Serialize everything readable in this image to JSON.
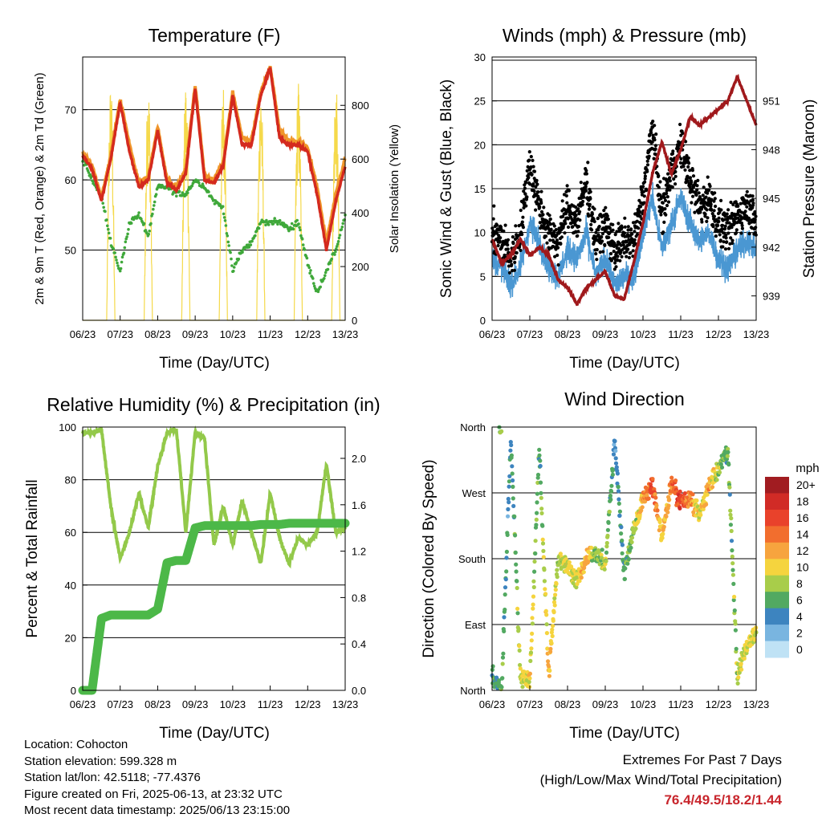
{
  "info": {
    "location": "Location: Cohocton",
    "elevation": "Station elevation: 599.328 m",
    "latlon": "Station lat/lon: 42.5118; -77.4376",
    "created": "Figure created on Fri, 2025-06-13, at 23:32 UTC",
    "recent": "Most recent data timestamp: 2025/06/13 23:15:00"
  },
  "extremes": {
    "title": "Extremes For Past 7 Days",
    "subtitle": "(High/Low/Max Wind/Total Precipitation)",
    "values": "76.4/49.5/18.2/1.44"
  },
  "time_ticks": [
    "06/23",
    "07/23",
    "08/23",
    "09/23",
    "10/23",
    "11/23",
    "12/23",
    "13/23"
  ],
  "colors": {
    "red": "#d42a1e",
    "orange": "#f0962a",
    "green": "#3fa83a",
    "yellow": "#f5d94a",
    "blue": "#4a97d2",
    "black": "#000000",
    "maroon": "#a0191c",
    "rh": "#93c94a",
    "precip": "#4cb848"
  },
  "chart_data": [
    {
      "type": "line",
      "title": "Temperature (F)",
      "xlabel": "Time (Day/UTC)",
      "ylabel": "2m & 9m T (Red, Orange) & 2m Td (Green)",
      "y2label": "Solar Insolation (Yellow)",
      "ylim": [
        40,
        77.5
      ],
      "y2lim": [
        0,
        980
      ],
      "yticks": [
        "50",
        "60",
        "70"
      ],
      "y2ticks": [
        "0",
        "200",
        "400",
        "600",
        "800"
      ],
      "x": [
        6.0,
        6.25,
        6.5,
        6.75,
        7.0,
        7.25,
        7.5,
        7.75,
        8.0,
        8.25,
        8.5,
        8.75,
        9.0,
        9.25,
        9.5,
        9.75,
        10.0,
        10.25,
        10.5,
        10.75,
        11.0,
        11.25,
        11.5,
        11.75,
        12.0,
        12.25,
        12.5,
        12.75,
        13.0
      ],
      "series": [
        {
          "name": "2m T",
          "values": [
            63.5,
            61.5,
            57,
            63,
            71,
            64,
            59,
            60,
            67,
            59.5,
            58.5,
            61,
            73,
            60,
            59.5,
            62,
            72,
            65,
            65,
            72,
            76,
            66,
            65,
            65,
            64,
            58,
            50,
            57,
            62
          ]
        },
        {
          "name": "9m T",
          "values": [
            63.8,
            62,
            57.5,
            63.5,
            71.5,
            65,
            59.5,
            60.5,
            67.5,
            60,
            59,
            61.5,
            73.5,
            60.5,
            60,
            62.5,
            72.5,
            66,
            65.5,
            72.5,
            76.2,
            67,
            65.5,
            65.5,
            64.5,
            59,
            51,
            58,
            63
          ]
        },
        {
          "name": "2m Td",
          "values": [
            63,
            60,
            58,
            51,
            47,
            54,
            55,
            52,
            59,
            59,
            58,
            58,
            60,
            59,
            57,
            56,
            47,
            50,
            51,
            54,
            54,
            54,
            53,
            54,
            48,
            44,
            47,
            50,
            55
          ]
        },
        {
          "name": "Solar Insolation",
          "axis": "y2",
          "values": [
            120,
            200,
            0,
            900,
            1000,
            0,
            0,
            0,
            950,
            0,
            0,
            0,
            850,
            0,
            0,
            0,
            960,
            0,
            0,
            0,
            950,
            0,
            0,
            0,
            980,
            0,
            0,
            0,
            800
          ]
        }
      ]
    },
    {
      "type": "line",
      "title": "Winds (mph) & Pressure (mb)",
      "xlabel": "Time (Day/UTC)",
      "ylabel": "Sonic Wind & Gust (Blue, Black)",
      "y2label": "Station Pressure (Maroon)",
      "ylim": [
        0,
        30
      ],
      "y2lim": [
        937.5,
        953.7
      ],
      "yticks": [
        "0",
        "5",
        "10",
        "15",
        "20",
        "25",
        "30"
      ],
      "y2ticks": [
        "939",
        "942",
        "945",
        "948",
        "951"
      ],
      "x": [
        6.0,
        6.25,
        6.5,
        6.75,
        7.0,
        7.25,
        7.5,
        7.75,
        8.0,
        8.25,
        8.5,
        8.75,
        9.0,
        9.25,
        9.5,
        9.75,
        10.0,
        10.25,
        10.5,
        10.75,
        11.0,
        11.25,
        11.5,
        11.75,
        12.0,
        12.25,
        12.5,
        12.75,
        13.0
      ],
      "series": [
        {
          "name": "Sonic Wind",
          "values": [
            7,
            6,
            4,
            6,
            11,
            9,
            6,
            5,
            8,
            7,
            10,
            5,
            7,
            4,
            5,
            5,
            10,
            14,
            8,
            11,
            14,
            11,
            9,
            10,
            7,
            6,
            8,
            9,
            8
          ]
        },
        {
          "name": "Gust",
          "values": [
            10,
            9,
            7,
            10,
            18,
            13,
            10,
            9,
            13,
            11,
            16,
            9,
            11,
            8,
            9,
            9,
            14,
            22,
            12,
            17,
            20,
            16,
            13,
            14,
            11,
            10,
            12,
            13,
            12
          ]
        },
        {
          "name": "Station Pressure",
          "axis": "y2",
          "values": [
            942.5,
            941,
            941.5,
            942.5,
            941.5,
            942,
            941.5,
            940,
            939.5,
            938.5,
            939.5,
            940,
            940.5,
            939,
            938.8,
            941,
            943.5,
            946.5,
            948.5,
            946.5,
            948,
            950,
            949.5,
            950,
            950.5,
            951,
            952.5,
            951,
            949.5
          ]
        }
      ]
    },
    {
      "type": "line",
      "title": "Relative Humidity (%) & Precipitation (in)",
      "xlabel": "Time (Day/UTC)",
      "ylabel": "Percent & Total Rainfall",
      "ylim": [
        0,
        100
      ],
      "y2lim": [
        0,
        2.27
      ],
      "yticks": [
        "0",
        "20",
        "40",
        "60",
        "80",
        "100"
      ],
      "y2ticks": [
        "0.0",
        "0.4",
        "0.8",
        "1.2",
        "1.6",
        "2.0"
      ],
      "x": [
        6.0,
        6.25,
        6.5,
        6.75,
        7.0,
        7.25,
        7.5,
        7.75,
        8.0,
        8.25,
        8.5,
        8.75,
        9.0,
        9.25,
        9.5,
        9.75,
        10.0,
        10.25,
        10.5,
        10.75,
        11.0,
        11.25,
        11.5,
        11.75,
        12.0,
        12.25,
        12.5,
        12.75,
        13.0
      ],
      "series": [
        {
          "name": "Relative Humidity",
          "values": [
            98,
            98,
            99,
            70,
            50,
            60,
            75,
            62,
            85,
            98,
            99,
            60,
            98,
            96,
            55,
            70,
            55,
            72,
            60,
            48,
            75,
            58,
            48,
            58,
            55,
            60,
            86,
            60,
            62
          ]
        },
        {
          "name": "Total Precipitation",
          "axis": "y2",
          "values": [
            0,
            0,
            0.62,
            0.65,
            0.65,
            0.65,
            0.65,
            0.65,
            0.7,
            1.1,
            1.12,
            1.12,
            1.4,
            1.42,
            1.42,
            1.42,
            1.42,
            1.42,
            1.42,
            1.43,
            1.43,
            1.43,
            1.44,
            1.44,
            1.44,
            1.44,
            1.44,
            1.44,
            1.44
          ]
        }
      ]
    },
    {
      "type": "scatter",
      "title": "Wind Direction",
      "xlabel": "Time (Day/UTC)",
      "ylabel": "Direction (Colored By Speed)",
      "ylim": [
        0,
        360
      ],
      "yticks": [
        "North",
        "East",
        "South",
        "West",
        "North"
      ],
      "x": [
        6.0,
        6.25,
        6.5,
        6.75,
        7.0,
        7.25,
        7.5,
        7.75,
        8.0,
        8.25,
        8.5,
        8.75,
        9.0,
        9.25,
        9.5,
        9.75,
        10.0,
        10.25,
        10.5,
        10.75,
        11.0,
        11.25,
        11.5,
        11.75,
        12.0,
        12.25,
        12.5,
        12.75,
        13.0
      ],
      "direction": [
        20,
        0,
        345,
        20,
        10,
        330,
        20,
        180,
        170,
        150,
        180,
        190,
        170,
        340,
        160,
        220,
        260,
        280,
        210,
        280,
        260,
        260,
        240,
        280,
        300,
        330,
        20,
        60,
        80
      ],
      "speed": [
        5,
        6,
        4,
        9,
        10,
        6,
        11,
        8,
        10,
        9,
        12,
        7,
        8,
        4,
        6,
        8,
        12,
        16,
        10,
        14,
        16,
        13,
        9,
        12,
        8,
        6,
        8,
        10,
        9
      ],
      "legend_title": "mph",
      "legend_labels": [
        "20+",
        "18",
        "16",
        "14",
        "12",
        "10",
        "8",
        "6",
        "4",
        "2",
        "0"
      ],
      "legend_colors": [
        "#a11c21",
        "#d12b26",
        "#e9422b",
        "#f26e2e",
        "#f7a43e",
        "#f5d43e",
        "#a8cd4a",
        "#52a961",
        "#3d84bf",
        "#79b5e0",
        "#bfe2f5"
      ]
    }
  ]
}
